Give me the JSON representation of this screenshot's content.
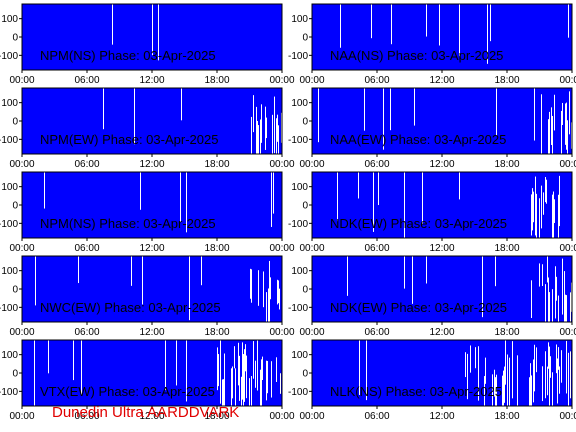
{
  "footer": "Dunedin Ultra AARDDVARK",
  "colors": {
    "fill": "#0000ff",
    "gap": "#ffffff",
    "axis": "#000000",
    "footer": "#e00000"
  },
  "chart_data": [
    {
      "type": "area",
      "title": "NPM(NS) Phase: 03-Apr-2025",
      "x_ticks": [
        "00:00",
        "06:00",
        "12:00",
        "18:00",
        "00:00"
      ],
      "y_ticks": [
        100,
        0,
        -100
      ],
      "ylim": [
        -180,
        180
      ],
      "xlim_hours": [
        0,
        24
      ],
      "gap_pattern": "sparse",
      "dense_from_hour": null
    },
    {
      "type": "area",
      "title": "NAA(NS) Phase: 03-Apr-2025",
      "x_ticks": [
        "00:00",
        "06:00",
        "12:00",
        "18:00",
        "00:00"
      ],
      "y_ticks": [
        100,
        0,
        -100
      ],
      "ylim": [
        -180,
        180
      ],
      "xlim_hours": [
        0,
        24
      ],
      "gap_pattern": "moderate",
      "dense_from_hour": null
    },
    {
      "type": "area",
      "title": "NPM(EW) Phase: 03-Apr-2025",
      "x_ticks": [
        "00:00",
        "06:00",
        "12:00",
        "18:00",
        "00:00"
      ],
      "y_ticks": [
        100,
        0,
        -100
      ],
      "ylim": [
        -180,
        180
      ],
      "xlim_hours": [
        0,
        24
      ],
      "gap_pattern": "sparse",
      "dense_from_hour": 21
    },
    {
      "type": "area",
      "title": "NAA(EW) Phase: 03-Apr-2025",
      "x_ticks": [
        "00:00",
        "06:00",
        "12:00",
        "18:00",
        "00:00"
      ],
      "y_ticks": [
        100,
        0,
        -100
      ],
      "ylim": [
        -180,
        180
      ],
      "xlim_hours": [
        0,
        24
      ],
      "gap_pattern": "moderate",
      "dense_from_hour": 21
    },
    {
      "type": "area",
      "title": "NPM(NS) Phase: 03-Apr-2025",
      "x_ticks": [
        "00:00",
        "06:00",
        "12:00",
        "18:00",
        "00:00"
      ],
      "y_ticks": [
        100,
        0,
        -100
      ],
      "ylim": [
        -180,
        180
      ],
      "xlim_hours": [
        0,
        24
      ],
      "gap_pattern": "sparse",
      "dense_from_hour": null
    },
    {
      "type": "area",
      "title": "NDK(EW) Phase: 03-Apr-2025",
      "x_ticks": [
        "00:00",
        "06:00",
        "12:00",
        "18:00",
        "00:00"
      ],
      "y_ticks": [
        100,
        0,
        -100
      ],
      "ylim": [
        -180,
        180
      ],
      "xlim_hours": [
        0,
        24
      ],
      "gap_pattern": "moderate",
      "dense_from_hour": 20
    },
    {
      "type": "area",
      "title": "NWC(EW) Phase: 03-Apr-2025",
      "x_ticks": [
        "00:00",
        "06:00",
        "12:00",
        "18:00",
        "00:00"
      ],
      "y_ticks": [
        100,
        0,
        -100
      ],
      "ylim": [
        -180,
        180
      ],
      "xlim_hours": [
        0,
        24
      ],
      "gap_pattern": "moderate",
      "dense_from_hour": 21
    },
    {
      "type": "area",
      "title": "NDK(EW) Phase: 03-Apr-2025",
      "x_ticks": [
        "00:00",
        "06:00",
        "12:00",
        "18:00",
        "00:00"
      ],
      "y_ticks": [
        100,
        0,
        -100
      ],
      "ylim": [
        -180,
        180
      ],
      "xlim_hours": [
        0,
        24
      ],
      "gap_pattern": "moderate",
      "dense_from_hour": 20
    },
    {
      "type": "area",
      "title": "VTX(EW) Phase: 03-Apr-2025",
      "x_ticks": [
        "00:00",
        "06:00",
        "12:00",
        "18:00",
        "00:00"
      ],
      "y_ticks": [
        100,
        0,
        -100
      ],
      "ylim": [
        -180,
        180
      ],
      "xlim_hours": [
        0,
        24
      ],
      "gap_pattern": "moderate",
      "dense_from_hour": 18
    },
    {
      "type": "area",
      "title": "NLK(NS) Phase: 03-Apr-2025",
      "x_ticks": [
        "00:00",
        "06:00",
        "12:00",
        "18:00",
        "00:00"
      ],
      "y_ticks": [
        100,
        0,
        -100
      ],
      "ylim": [
        -180,
        180
      ],
      "xlim_hours": [
        0,
        24
      ],
      "gap_pattern": "moderate",
      "dense_from_hour": 14
    }
  ]
}
